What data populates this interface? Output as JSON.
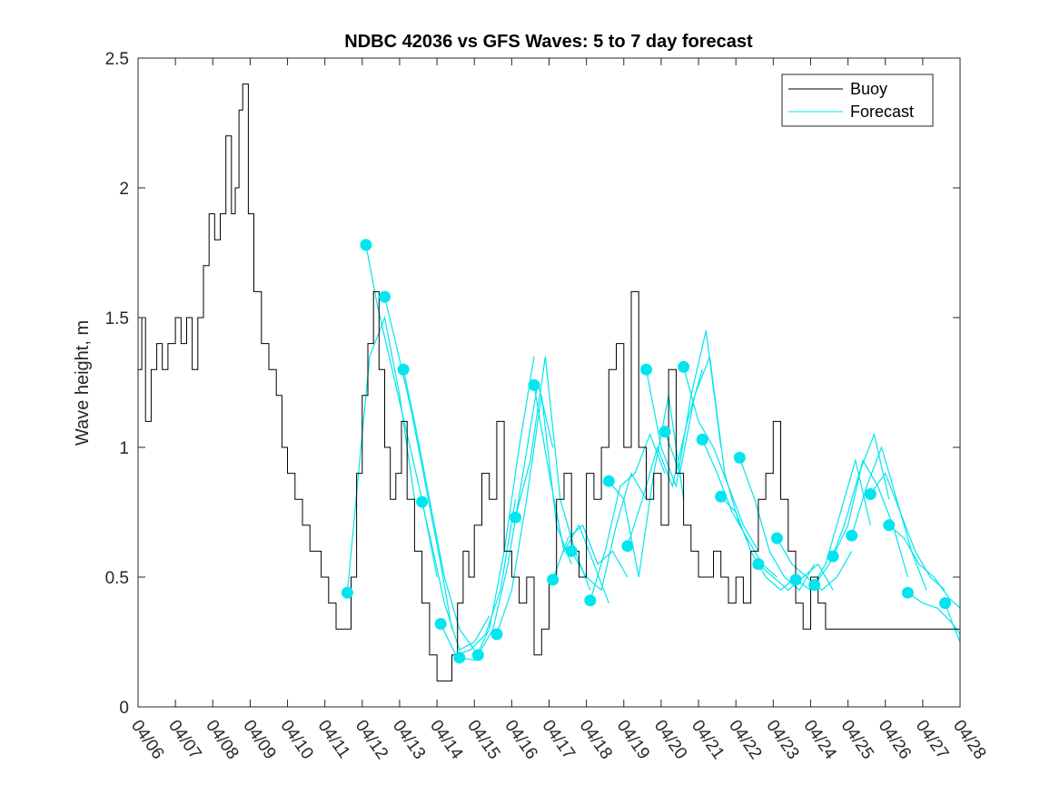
{
  "chart_data": {
    "type": "line",
    "title": "NDBC 42036 vs GFS Waves: 5 to 7 day forecast",
    "xlabel": "",
    "ylabel": "Wave height, m",
    "xlim": [
      "04/06",
      "04/28"
    ],
    "ylim": [
      0,
      2.5
    ],
    "x_ticks": [
      "04/06",
      "04/07",
      "04/08",
      "04/09",
      "04/10",
      "04/11",
      "04/12",
      "04/13",
      "04/14",
      "04/15",
      "04/16",
      "04/17",
      "04/18",
      "04/19",
      "04/20",
      "04/21",
      "04/22",
      "04/23",
      "04/24",
      "04/25",
      "04/26",
      "04/27",
      "04/28"
    ],
    "y_ticks": [
      "0",
      "0.5",
      "1",
      "1.5",
      "2",
      "2.5"
    ],
    "grid": false,
    "legend": {
      "placement": "top-right",
      "entries": [
        {
          "label": "Buoy",
          "color": "#000000"
        },
        {
          "label": "Forecast",
          "color": "#00e5ee"
        }
      ]
    },
    "colors": {
      "buoy": "#000000",
      "forecast": "#00e5ee",
      "marker": "#00e5ee"
    },
    "series": [
      {
        "name": "Buoy",
        "x_day_offset": [
          0,
          0.1,
          0.2,
          0.35,
          0.5,
          0.65,
          0.8,
          1.0,
          1.15,
          1.3,
          1.45,
          1.6,
          1.75,
          1.9,
          2.05,
          2.2,
          2.35,
          2.5,
          2.6,
          2.7,
          2.8,
          2.95,
          3.1,
          3.3,
          3.5,
          3.7,
          3.85,
          4.0,
          4.2,
          4.4,
          4.6,
          4.75,
          4.9,
          5.1,
          5.3,
          5.5,
          5.7,
          5.85,
          6.0,
          6.15,
          6.3,
          6.45,
          6.6,
          6.75,
          6.9,
          7.05,
          7.2,
          7.4,
          7.6,
          7.8,
          8.0,
          8.2,
          8.4,
          8.55,
          8.7,
          8.85,
          9.0,
          9.2,
          9.4,
          9.6,
          9.8,
          10.0,
          10.2,
          10.4,
          10.6,
          10.8,
          11.0,
          11.2,
          11.4,
          11.6,
          11.8,
          12.0,
          12.2,
          12.4,
          12.6,
          12.8,
          13.0,
          13.2,
          13.4,
          13.6,
          13.8,
          14.0,
          14.2,
          14.4,
          14.6,
          14.8,
          15.0,
          15.2,
          15.4,
          15.6,
          15.8,
          16.0,
          16.2,
          16.4,
          16.6,
          16.8,
          17.0,
          17.2,
          17.4,
          17.6,
          17.8,
          18.0,
          18.2,
          18.4,
          18.6,
          18.8,
          19.0,
          19.2,
          19.4,
          19.6,
          19.8,
          20.0,
          20.2,
          20.4,
          20.6,
          20.8,
          21.0,
          21.2,
          21.4,
          21.6,
          21.8,
          22.0
        ],
        "values": [
          1.3,
          1.5,
          1.1,
          1.3,
          1.4,
          1.3,
          1.4,
          1.5,
          1.4,
          1.5,
          1.3,
          1.5,
          1.7,
          1.9,
          1.8,
          1.9,
          2.2,
          1.9,
          2.0,
          2.3,
          2.4,
          1.9,
          1.6,
          1.4,
          1.3,
          1.2,
          1.0,
          0.9,
          0.8,
          0.7,
          0.6,
          0.6,
          0.5,
          0.4,
          0.3,
          0.3,
          0.5,
          0.9,
          1.2,
          1.4,
          1.6,
          1.3,
          1.0,
          0.8,
          0.9,
          1.1,
          0.8,
          0.6,
          0.4,
          0.2,
          0.1,
          0.1,
          0.2,
          0.4,
          0.6,
          0.5,
          0.7,
          0.9,
          0.8,
          1.1,
          0.6,
          0.5,
          0.4,
          0.5,
          0.2,
          0.3,
          0.5,
          0.8,
          0.9,
          0.6,
          0.5,
          0.9,
          0.8,
          1.0,
          1.3,
          1.4,
          1.0,
          1.6,
          1.0,
          0.8,
          0.9,
          0.7,
          1.3,
          0.9,
          0.7,
          0.6,
          0.5,
          0.5,
          0.6,
          0.5,
          0.4,
          0.5,
          0.4,
          0.6,
          0.8,
          0.9,
          1.1,
          0.8,
          0.6,
          0.4,
          0.3,
          0.5,
          0.4,
          0.3,
          0.3,
          0.3,
          0.3,
          0.3,
          0.3,
          0.3,
          0.3,
          0.3,
          0.3,
          0.3,
          0.3,
          0.3,
          0.3,
          0.3,
          0.3,
          0.3,
          0.3,
          0.3
        ]
      }
    ],
    "forecast_runs": [
      {
        "x_day_offset": [
          5.6,
          5.9,
          6.2,
          6.6,
          7.0,
          7.4
        ],
        "values": [
          0.44,
          0.9,
          1.35,
          1.5,
          1.2,
          0.8
        ]
      },
      {
        "x_day_offset": [
          6.1,
          6.4,
          6.8,
          7.2,
          7.6,
          8.0
        ],
        "values": [
          1.78,
          1.55,
          1.3,
          1.05,
          0.8,
          0.5
        ]
      },
      {
        "x_day_offset": [
          6.6,
          6.9,
          7.3,
          7.7,
          8.1,
          8.4
        ],
        "values": [
          1.58,
          1.4,
          1.15,
          0.85,
          0.55,
          0.3
        ]
      },
      {
        "x_day_offset": [
          7.1,
          7.4,
          7.8,
          8.2,
          8.6,
          9.0
        ],
        "values": [
          1.3,
          1.1,
          0.8,
          0.5,
          0.3,
          0.22
        ]
      },
      {
        "x_day_offset": [
          7.6,
          7.9,
          8.2,
          8.6,
          9.0,
          9.4
        ],
        "values": [
          0.79,
          0.6,
          0.4,
          0.22,
          0.25,
          0.35
        ]
      },
      {
        "x_day_offset": [
          8.1,
          8.5,
          8.9,
          9.3,
          9.7,
          10.1
        ],
        "values": [
          0.32,
          0.2,
          0.22,
          0.28,
          0.45,
          0.8
        ]
      },
      {
        "x_day_offset": [
          8.6,
          9.0,
          9.4,
          9.8,
          10.2,
          10.6
        ],
        "values": [
          0.19,
          0.18,
          0.3,
          0.6,
          1.0,
          1.35
        ]
      },
      {
        "x_day_offset": [
          9.1,
          9.5,
          9.9,
          10.3,
          10.7,
          11.1
        ],
        "values": [
          0.2,
          0.3,
          0.55,
          0.9,
          1.25,
          1.0
        ]
      },
      {
        "x_day_offset": [
          9.6,
          10.0,
          10.4,
          10.8,
          11.2,
          11.6
        ],
        "values": [
          0.28,
          0.45,
          0.8,
          1.2,
          0.7,
          0.55
        ]
      },
      {
        "x_day_offset": [
          10.1,
          10.5,
          10.9,
          11.3,
          11.7,
          12.1
        ],
        "values": [
          0.73,
          0.95,
          1.35,
          0.8,
          0.6,
          0.45
        ]
      },
      {
        "x_day_offset": [
          10.6,
          11.0,
          11.4,
          11.8,
          12.2,
          12.6
        ],
        "values": [
          1.24,
          0.9,
          0.6,
          0.7,
          0.55,
          0.4
        ]
      },
      {
        "x_day_offset": [
          11.1,
          11.5,
          11.9,
          12.3,
          12.7,
          13.1
        ],
        "values": [
          0.49,
          0.65,
          0.7,
          0.55,
          0.6,
          0.5
        ]
      },
      {
        "x_day_offset": [
          11.6,
          12.0,
          12.4,
          12.8,
          13.2,
          13.6
        ],
        "values": [
          0.6,
          0.5,
          0.45,
          0.7,
          0.9,
          0.8
        ]
      },
      {
        "x_day_offset": [
          12.1,
          12.5,
          12.9,
          13.3,
          13.7,
          14.1
        ],
        "values": [
          0.41,
          0.6,
          0.85,
          0.9,
          1.05,
          0.9
        ]
      },
      {
        "x_day_offset": [
          12.6,
          13.0,
          13.4,
          13.8,
          14.2,
          14.6
        ],
        "values": [
          0.87,
          0.8,
          0.5,
          0.9,
          1.2,
          0.8
        ]
      },
      {
        "x_day_offset": [
          13.1,
          13.5,
          13.9,
          14.3,
          14.7,
          15.1
        ],
        "values": [
          0.62,
          0.8,
          1.0,
          0.85,
          1.1,
          1.3
        ]
      },
      {
        "x_day_offset": [
          13.6,
          14.0,
          14.4,
          14.8,
          15.2,
          15.6
        ],
        "values": [
          1.3,
          1.0,
          0.85,
          1.2,
          1.45,
          1.0
        ]
      },
      {
        "x_day_offset": [
          14.1,
          14.5,
          14.9,
          15.3,
          15.7,
          16.1
        ],
        "values": [
          1.06,
          0.9,
          1.2,
          1.35,
          0.9,
          0.7
        ]
      },
      {
        "x_day_offset": [
          14.6,
          15.0,
          15.4,
          15.8,
          16.2,
          16.6
        ],
        "values": [
          1.31,
          1.1,
          1.0,
          0.85,
          0.7,
          0.6
        ]
      },
      {
        "x_day_offset": [
          15.1,
          15.5,
          15.9,
          16.3,
          16.7,
          17.1
        ],
        "values": [
          1.03,
          0.9,
          0.75,
          0.65,
          0.55,
          0.5
        ]
      },
      {
        "x_day_offset": [
          15.6,
          16.0,
          16.4,
          16.8,
          17.2,
          17.6
        ],
        "values": [
          0.81,
          0.75,
          0.6,
          0.5,
          0.45,
          0.5
        ]
      },
      {
        "x_day_offset": [
          16.1,
          16.5,
          16.9,
          17.3,
          17.7,
          18.1
        ],
        "values": [
          0.96,
          0.8,
          0.6,
          0.5,
          0.45,
          0.55
        ]
      },
      {
        "x_day_offset": [
          16.6,
          17.0,
          17.4,
          17.8,
          18.2,
          18.6
        ],
        "values": [
          0.55,
          0.5,
          0.45,
          0.5,
          0.55,
          0.45
        ]
      },
      {
        "x_day_offset": [
          17.1,
          17.5,
          17.9,
          18.3,
          18.7,
          19.1
        ],
        "values": [
          0.65,
          0.55,
          0.5,
          0.45,
          0.5,
          0.6
        ]
      },
      {
        "x_day_offset": [
          17.6,
          18.0,
          18.4,
          18.8,
          19.2,
          19.6
        ],
        "values": [
          0.49,
          0.45,
          0.55,
          0.75,
          0.95,
          0.7
        ]
      },
      {
        "x_day_offset": [
          18.1,
          18.5,
          18.9,
          19.3,
          19.7,
          20.1
        ],
        "values": [
          0.47,
          0.55,
          0.7,
          0.9,
          1.05,
          0.8
        ]
      },
      {
        "x_day_offset": [
          18.6,
          19.0,
          19.4,
          19.8,
          20.2,
          20.6
        ],
        "values": [
          0.58,
          0.7,
          0.95,
          0.85,
          0.7,
          0.5
        ]
      },
      {
        "x_day_offset": [
          19.1,
          19.5,
          19.9,
          20.3,
          20.7,
          21.1
        ],
        "values": [
          0.66,
          0.85,
          1.0,
          0.8,
          0.6,
          0.45
        ]
      },
      {
        "x_day_offset": [
          19.6,
          20.0,
          20.4,
          20.8,
          21.2,
          21.6
        ],
        "values": [
          0.82,
          0.9,
          0.75,
          0.6,
          0.5,
          0.45
        ]
      },
      {
        "x_day_offset": [
          20.1,
          20.5,
          20.9,
          21.3,
          21.7,
          22.0
        ],
        "values": [
          0.7,
          0.65,
          0.55,
          0.5,
          0.42,
          0.38
        ]
      },
      {
        "x_day_offset": [
          20.6,
          21.0,
          21.4,
          21.8,
          22.0
        ],
        "values": [
          0.44,
          0.4,
          0.38,
          0.32,
          0.25
        ]
      },
      {
        "x_day_offset": [
          21.6,
          21.8,
          22.0
        ],
        "values": [
          0.4,
          0.32,
          0.28
        ]
      }
    ],
    "forecast_markers": {
      "x_day_offset": [
        5.6,
        6.1,
        6.6,
        7.1,
        7.6,
        8.1,
        8.6,
        9.1,
        9.6,
        10.1,
        10.6,
        11.1,
        11.6,
        12.1,
        12.6,
        13.1,
        13.6,
        14.1,
        14.6,
        15.1,
        15.6,
        16.1,
        16.6,
        17.1,
        17.6,
        18.1,
        18.6,
        19.1,
        19.6,
        20.1,
        20.6,
        21.6
      ],
      "values": [
        0.44,
        1.78,
        1.58,
        1.3,
        0.79,
        0.32,
        0.19,
        0.2,
        0.28,
        0.73,
        1.24,
        0.49,
        0.6,
        0.41,
        0.87,
        0.62,
        1.3,
        1.06,
        1.31,
        1.03,
        0.81,
        0.96,
        0.55,
        0.65,
        0.49,
        0.47,
        0.58,
        0.66,
        0.82,
        0.7,
        0.44,
        0.4
      ]
    }
  }
}
